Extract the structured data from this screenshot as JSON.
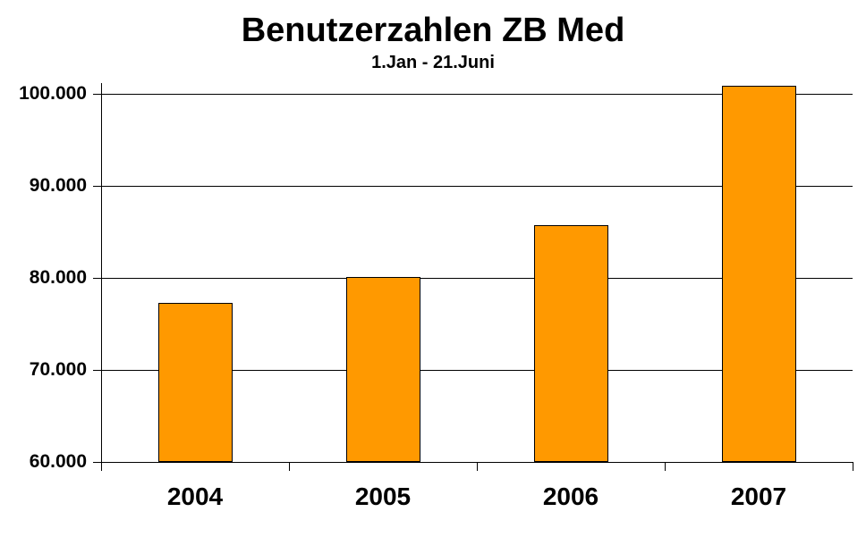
{
  "chart_data": {
    "type": "bar",
    "title": "Benutzerzahlen ZB Med",
    "subtitle": "1.Jan - 21.Juni",
    "categories": [
      "2004",
      "2005",
      "2006",
      "2007"
    ],
    "values": [
      77250,
      80100,
      85700,
      100900
    ],
    "xlabel": "",
    "ylabel": "",
    "ylim": [
      60000,
      100000
    ],
    "yticks": [
      100000,
      90000,
      80000,
      70000,
      60000
    ],
    "ytick_labels": [
      "100.000",
      "90.000",
      "80.000",
      "70.000",
      "60.000"
    ],
    "grid": true,
    "legend": false,
    "colors": {
      "bar_fill": "#FF9900",
      "bar_border": "#000000",
      "axis": "#000000",
      "gridline": "#000000",
      "text": "#000000",
      "background": "#FFFFFF"
    }
  }
}
